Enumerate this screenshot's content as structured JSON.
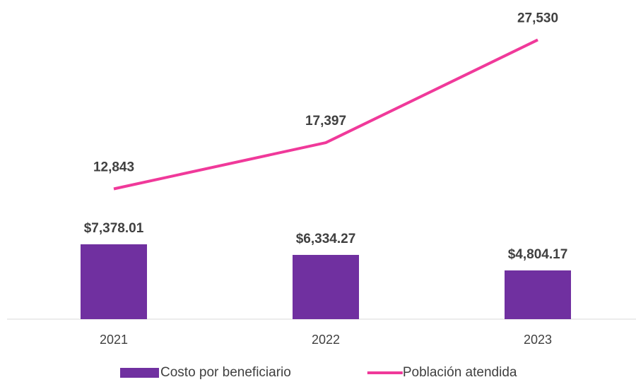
{
  "chart_data": {
    "type": "bar_line",
    "categories": [
      "2021",
      "2022",
      "2023"
    ],
    "ylim": [
      0,
      30000
    ],
    "legend": "bottom",
    "series": [
      {
        "name": "Costo por beneficiario",
        "type": "bar",
        "color": "#7030a0",
        "values": [
          7378.01,
          6334.27,
          4804.17
        ],
        "value_labels": [
          "$7,378.01",
          "$6,334.27",
          "$4,804.17"
        ]
      },
      {
        "name": "Población atendida",
        "type": "line",
        "color": "#f0399a",
        "values": [
          12843,
          17397,
          27530
        ],
        "value_labels": [
          "12,843",
          "17,397",
          "27,530"
        ]
      }
    ]
  }
}
